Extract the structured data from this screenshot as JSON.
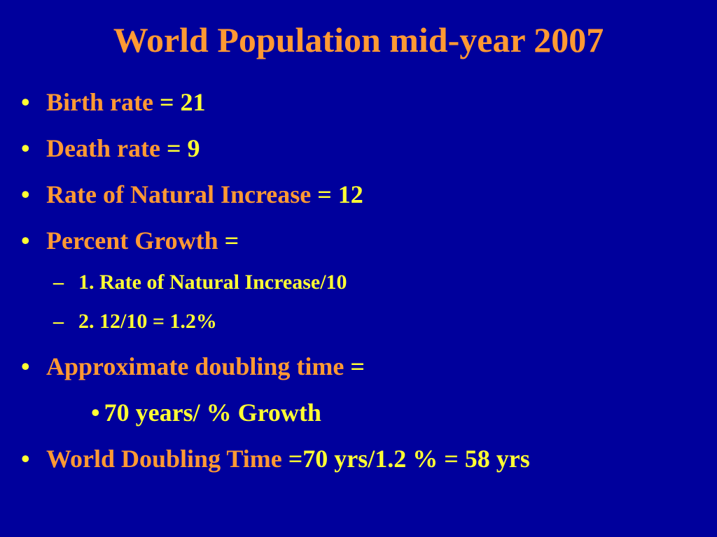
{
  "title": "World Population mid-year 2007",
  "bullet_glyph": "•",
  "dash_glyph": "–",
  "items": [
    {
      "label": "Birth rate",
      "value": " = 21"
    },
    {
      "label": "Death rate",
      "value": " = 9"
    },
    {
      "label": "Rate of Natural Increase",
      "value": " = 12"
    },
    {
      "label": "Percent Growth",
      "value": " ="
    },
    {
      "label": "Approximate doubling time",
      "value": " ="
    },
    {
      "label": "World Doubling Time",
      "value": " =70 yrs/1.2 % = 58 yrs"
    }
  ],
  "sub_items": [
    "1.  Rate of Natural Increase/10",
    "2.  12/10 = 1.2%"
  ],
  "indented_item": "70 years/ % Growth",
  "colors": {
    "background": "#00009c",
    "label_orange": "#ff9933",
    "value_yellow": "#ffff33"
  }
}
